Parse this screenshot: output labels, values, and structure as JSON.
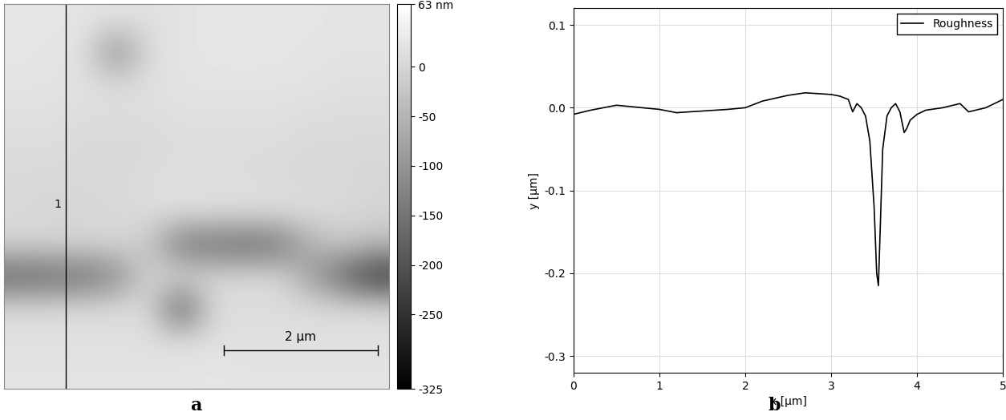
{
  "chart_data": [
    {
      "type": "heatmap",
      "panel_label": "a",
      "tick_labels": false,
      "xlim": [
        0,
        5
      ],
      "ylim": [
        0,
        5
      ],
      "cells": [
        [
          25,
          25,
          20,
          20,
          15,
          20,
          25,
          25,
          25,
          25,
          20,
          20
        ],
        [
          25,
          20,
          20,
          -120,
          10,
          20,
          25,
          25,
          25,
          20,
          20,
          20
        ],
        [
          20,
          20,
          15,
          10,
          15,
          20,
          20,
          20,
          20,
          20,
          15,
          15
        ],
        [
          15,
          15,
          10,
          10,
          10,
          15,
          15,
          15,
          15,
          10,
          10,
          10
        ],
        [
          10,
          10,
          5,
          5,
          5,
          10,
          10,
          10,
          10,
          5,
          5,
          5
        ],
        [
          5,
          5,
          5,
          5,
          10,
          15,
          10,
          10,
          5,
          5,
          5,
          0
        ],
        [
          5,
          0,
          0,
          5,
          10,
          15,
          15,
          15,
          15,
          10,
          5,
          0
        ],
        [
          0,
          0,
          0,
          0,
          -20,
          -150,
          -160,
          -170,
          -160,
          -60,
          -20,
          -40
        ],
        [
          -180,
          -170,
          -160,
          -120,
          0,
          10,
          5,
          5,
          10,
          -80,
          -170,
          -250
        ],
        [
          10,
          10,
          10,
          10,
          10,
          -200,
          10,
          10,
          10,
          10,
          10,
          10
        ],
        [
          15,
          15,
          15,
          15,
          15,
          15,
          15,
          15,
          15,
          15,
          15,
          15
        ],
        [
          20,
          20,
          20,
          20,
          20,
          20,
          25,
          20,
          20,
          20,
          20,
          20
        ]
      ],
      "colorbar": {
        "range": [
          -325,
          63
        ],
        "ticks": [
          {
            "value": 63,
            "label": "63 nm"
          },
          0,
          -50,
          -100,
          -150,
          -200,
          -250,
          -325
        ]
      },
      "scale_bar": {
        "length": 2,
        "label": "2 µm"
      },
      "profile_line": {
        "x": 0.8,
        "label": "1"
      }
    },
    {
      "type": "line",
      "panel_label": "b",
      "x_label": "x [µm]",
      "y_label": "y [µm]",
      "xlim": [
        0,
        5
      ],
      "ylim": [
        -0.32,
        0.12
      ],
      "xticks": [
        0,
        1,
        2,
        3,
        4,
        5
      ],
      "yticks": [
        -0.3,
        -0.2,
        -0.1,
        0.0,
        0.1
      ],
      "grid": true,
      "legend": "upper right",
      "series": [
        {
          "name": "Roughness",
          "color": "#000000",
          "x": [
            0.0,
            0.2,
            0.5,
            0.8,
            1.0,
            1.2,
            1.5,
            1.8,
            2.0,
            2.2,
            2.5,
            2.7,
            3.0,
            3.1,
            3.2,
            3.25,
            3.3,
            3.35,
            3.4,
            3.45,
            3.5,
            3.53,
            3.55,
            3.57,
            3.6,
            3.65,
            3.7,
            3.75,
            3.8,
            3.85,
            3.88,
            3.92,
            4.0,
            4.1,
            4.3,
            4.5,
            4.6,
            4.8,
            5.0
          ],
          "values": [
            -0.008,
            -0.003,
            0.003,
            0.0,
            -0.002,
            -0.006,
            -0.004,
            -0.002,
            0.0,
            0.008,
            0.015,
            0.018,
            0.016,
            0.014,
            0.01,
            -0.005,
            0.005,
            0.0,
            -0.01,
            -0.04,
            -0.12,
            -0.2,
            -0.215,
            -0.15,
            -0.05,
            -0.01,
            0.0,
            0.005,
            -0.005,
            -0.03,
            -0.025,
            -0.015,
            -0.008,
            -0.003,
            0.0,
            0.005,
            -0.005,
            0.0,
            0.01
          ]
        }
      ]
    }
  ]
}
